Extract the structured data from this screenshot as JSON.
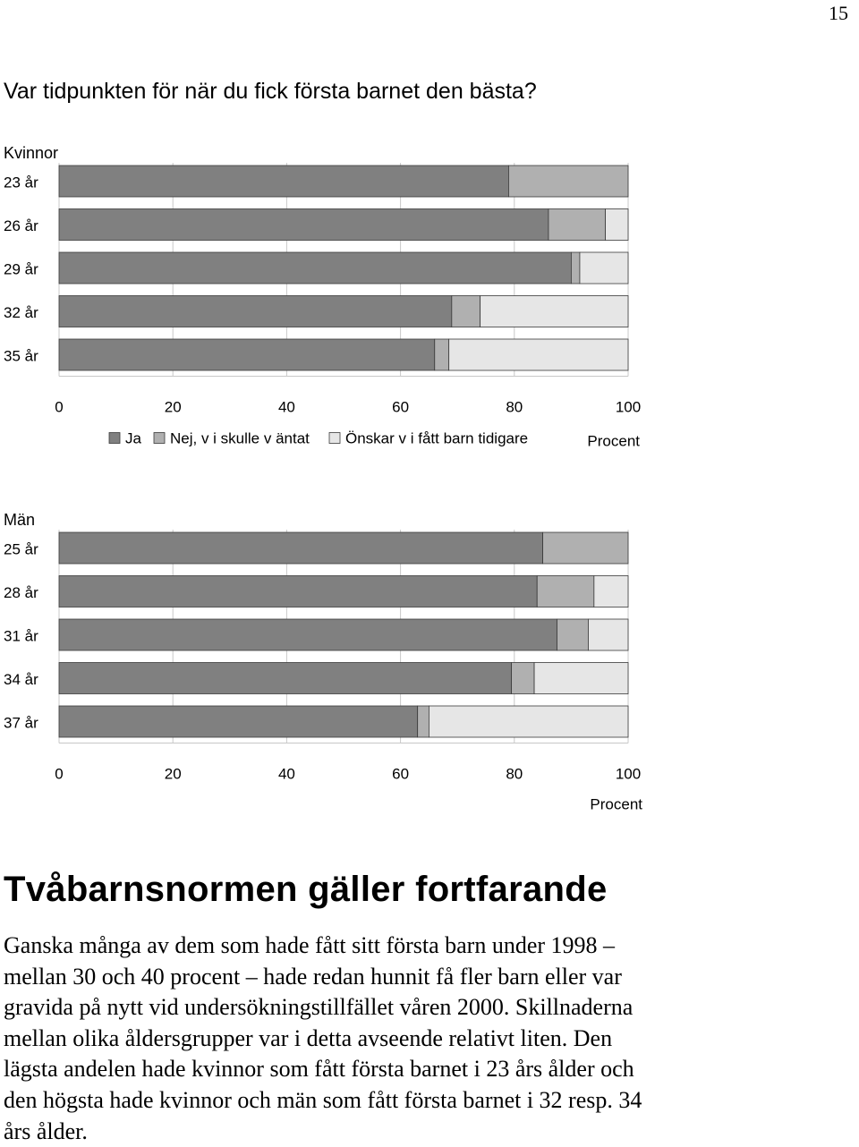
{
  "page_number": "15",
  "question": "Var tidpunkten för när du fick första barnet den bästa?",
  "legend": {
    "items": [
      {
        "label": "Ja",
        "color": "#808080"
      },
      {
        "label": "Nej, v i skulle v äntat",
        "color": "#b0b0b0"
      },
      {
        "label": "Önskar v i fått barn tidigare",
        "color": "#e6e6e6"
      }
    ]
  },
  "chart_data": [
    {
      "type": "bar",
      "orientation": "horizontal",
      "stacked": true,
      "title": "Kvinnor",
      "xlabel": "Procent",
      "xlim": [
        0,
        100
      ],
      "xticks": [
        "0",
        "20",
        "40",
        "60",
        "80",
        "100"
      ],
      "categories": [
        "23 år",
        "26 år",
        "29 år",
        "32 år",
        "35 år"
      ],
      "series": [
        {
          "name": "Ja",
          "color": "#808080",
          "values": [
            79,
            86,
            90,
            69,
            66
          ]
        },
        {
          "name": "Nej, v i skulle v äntat",
          "color": "#b0b0b0",
          "values": [
            21,
            10,
            1.5,
            5,
            2.5
          ]
        },
        {
          "name": "Önskar v i fått barn tidigare",
          "color": "#e6e6e6",
          "values": [
            0,
            4,
            8.5,
            26,
            31.5
          ]
        }
      ],
      "legend": "bottom",
      "grid": "vertical"
    },
    {
      "type": "bar",
      "orientation": "horizontal",
      "stacked": true,
      "title": "Män",
      "xlabel": "Procent",
      "xlim": [
        0,
        100
      ],
      "xticks": [
        "0",
        "20",
        "40",
        "60",
        "80",
        "100"
      ],
      "categories": [
        "25 år",
        "28 år",
        "31 år",
        "34 år",
        "37 år"
      ],
      "series": [
        {
          "name": "Ja",
          "color": "#808080",
          "values": [
            85,
            84,
            87.5,
            79.5,
            63
          ]
        },
        {
          "name": "Nej, v i skulle v äntat",
          "color": "#b0b0b0",
          "values": [
            15,
            10,
            5.5,
            4,
            2
          ]
        },
        {
          "name": "Önskar v i fått barn tidigare",
          "color": "#e6e6e6",
          "values": [
            0,
            6,
            7,
            16.5,
            35
          ]
        }
      ],
      "grid": "vertical"
    }
  ],
  "heading": "Tvåbarnsnormen gäller fortfarande",
  "body_lines": [
    "Ganska många av dem som hade fått sitt första barn under 1998 –",
    "mellan 30 och 40 procent – hade redan hunnit få fler barn eller var",
    "gravida på nytt vid undersökningstillfället våren 2000. Skillnaderna",
    "mellan olika åldersgrupper var i detta avseende relativt liten. Den",
    "lägsta andelen hade kvinnor som fått första barnet i 23 års ålder och",
    "den högsta hade kvinnor och män som fått första barnet i 32 resp. 34",
    "års ålder."
  ]
}
